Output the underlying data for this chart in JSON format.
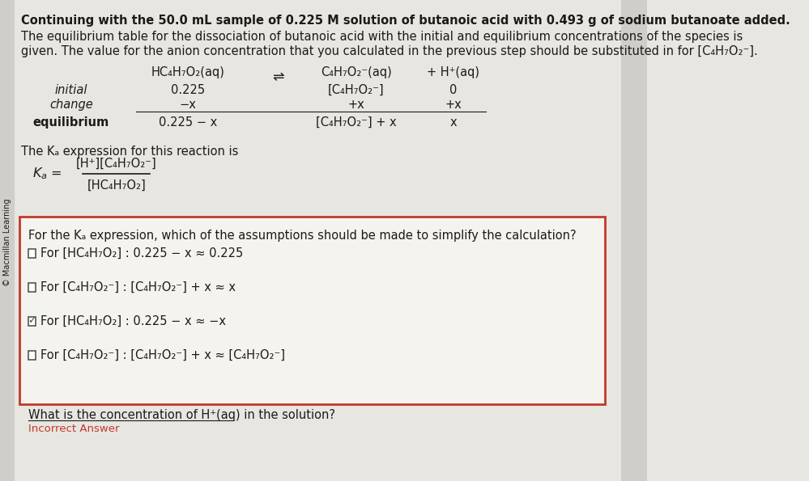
{
  "bg_color": "#e8e6e0",
  "sidebar_color": "#d0cec8",
  "sidebar_text": "© Macmillan Learning",
  "header_line1": "Continuing with the 50.0 mL sample of 0.225 M solution of butanoic acid with 0.493 g of sodium butanoate added.",
  "header_line2a": "The equilibrium table for the dissociation of butanoic acid with the initial and equilibrium concentrations of the species is",
  "header_line2b": "given. The value for the anion concentration that you calculated in the previous step should be substituted in for [C₄H₇O₂⁻].",
  "table_header_col1": "HC₄H₇O₂(aq)",
  "table_header_arrow": "⇌",
  "table_header_col2": "C₄H₇O₂⁻(aq)",
  "table_header_plus": "+ H⁺(aq)",
  "table_row_initial": [
    "initial",
    "0.225",
    "[C₄H₇O₂⁻]",
    "0"
  ],
  "table_row_change": [
    "change",
    "−x",
    "+x",
    "+x"
  ],
  "table_row_equil": [
    "equilibrium",
    "0.225 − x",
    "[C₄H₇O₂⁻] + x",
    "x"
  ],
  "ka_text": "The Kₐ expression for this reaction is",
  "ka_numerator": "[H⁺][C₄H₇O₂⁻]",
  "ka_denominator": "[HC₄H₇O₂]",
  "box_question": "For the Kₐ expression, which of the assumptions should be made to simplify the calculation?",
  "box_options": [
    {
      "checked": false,
      "text": "For [HC₄H₇O₂] : 0.225 − x ≈ 0.225"
    },
    {
      "checked": false,
      "text": "For [C₄H₇O₂⁻] : [C₄H₇O₂⁻] + x ≈ x"
    },
    {
      "checked": true,
      "text": "For [HC₄H₇O₂] : 0.225 − x ≈ −x"
    },
    {
      "checked": false,
      "text": "For [C₄H₇O₂⁻] : [C₄H₇O₂⁻] + x ≈ [C₄H₇O₂⁻]"
    }
  ],
  "bottom_text": "What is the concentration of H⁺(aq) in the solution?",
  "incorrect_text": "Incorrect Answer",
  "text_color": "#1a1a1a",
  "box_border_color": "#c0392b",
  "check_color": "#2c5f2e",
  "incorrect_color": "#c0392b",
  "font_size_main": 10.5,
  "font_size_small": 9.5
}
